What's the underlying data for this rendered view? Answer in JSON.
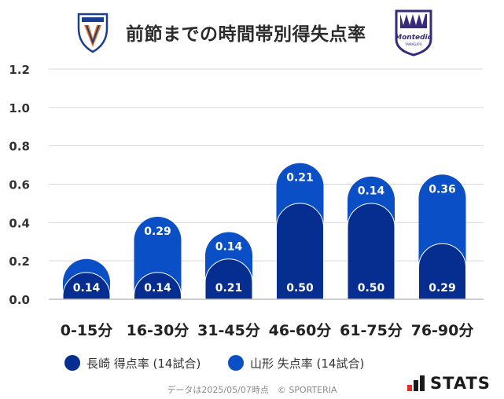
{
  "header": {
    "title": "前節までの時間帯別得失点率",
    "home_logo_text": "V·VAREN",
    "away_logo_text": "Montedio",
    "away_logo_subtext": "YAMAGATA"
  },
  "chart_data": {
    "type": "bar",
    "stacked": true,
    "categories": [
      "0-15分",
      "16-30分",
      "31-45分",
      "46-60分",
      "61-75分",
      "76-90分"
    ],
    "series": [
      {
        "name": "長崎 得点率 (14試合)",
        "values": [
          0.14,
          0.14,
          0.21,
          0.5,
          0.5,
          0.29
        ],
        "labels": [
          "0.14",
          "0.14",
          "0.21",
          "0.50",
          "0.50",
          "0.29"
        ]
      },
      {
        "name": "山形 失点率 (14試合)",
        "values": [
          0.07,
          0.29,
          0.14,
          0.21,
          0.14,
          0.36
        ],
        "labels": [
          "",
          "0.29",
          "0.14",
          "0.21",
          "0.14",
          "0.36"
        ]
      }
    ],
    "yticks": [
      "0.0",
      "0.2",
      "0.4",
      "0.6",
      "0.8",
      "1.0",
      "1.2"
    ],
    "ylim": [
      0,
      1.2
    ],
    "grid": true,
    "legend_position": "bottom-left"
  },
  "colors": {
    "home": "#062e91",
    "away": "#0a4fc6",
    "grid": "#d9d9d9",
    "label": "#ffffff"
  },
  "footer": {
    "note": "データは2025/05/07時点　© SPORTERIA",
    "brand": "STATS"
  }
}
